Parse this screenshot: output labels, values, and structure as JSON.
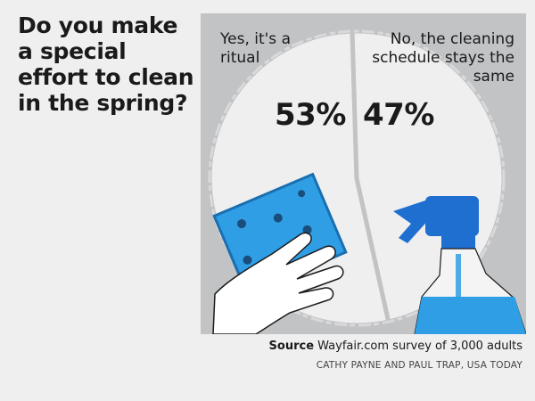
{
  "title": "Do you make a special effort to clean in the spring?",
  "chart_data": {
    "type": "pie",
    "title": "Do you make a special effort to clean in the spring?",
    "slices": [
      {
        "label": "Yes, it's a ritual",
        "value": 53,
        "display": "53%"
      },
      {
        "label": "No, the cleaning schedule stays the same",
        "value": 47,
        "display": "47%"
      }
    ],
    "unit": "%"
  },
  "source": {
    "prefix": "Source",
    "text": "Wayfair.com survey of 3,000 adults"
  },
  "credit": "CATHY PAYNE AND PAUL TRAP, USA TODAY",
  "colors": {
    "background": "#efefef",
    "panel": "#c2c3c5",
    "plate": "#efefef",
    "sponge": "#2f9ee5",
    "bottle": "#2f9ee5",
    "text": "#1a1a1a"
  }
}
